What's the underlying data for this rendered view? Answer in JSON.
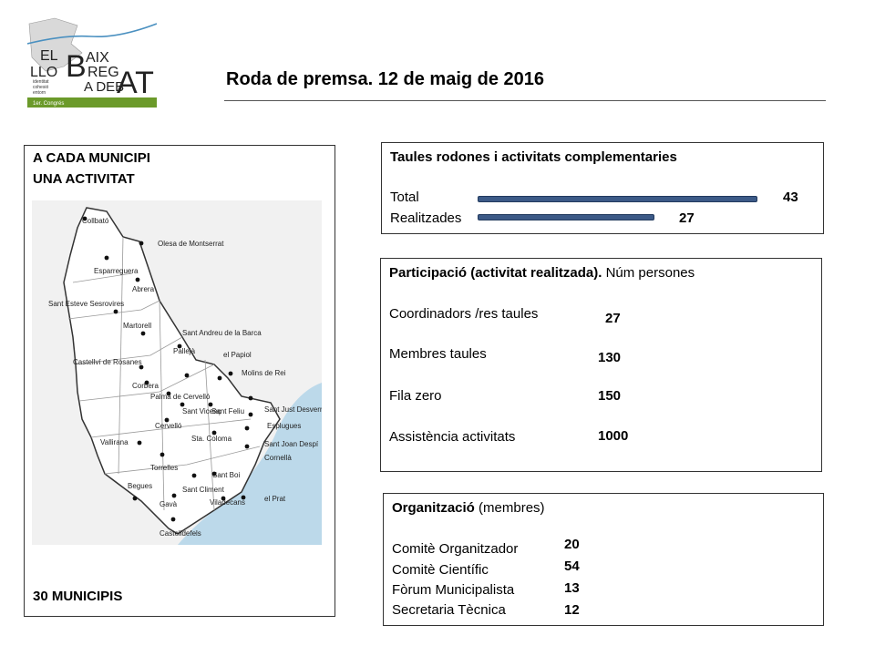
{
  "logo": {
    "line1": "EL",
    "line2": "LLO",
    "big_b": "B",
    "aix": "AIX",
    "reg": "REG",
    "at": "AT",
    "deb": "A DEB",
    "tagline": [
      "identitat",
      "cohesió",
      "entorn"
    ],
    "congress": "1er. Congrés"
  },
  "header": {
    "title": "Roda de premsa. 12 de maig de 2016"
  },
  "municipalities": {
    "heading_line1": "A CADA MUNICIPI",
    "heading_line2": "UNA ACTIVITAT",
    "footer": "30 MUNICIPIS",
    "map_labels": [
      "Collbató",
      "Olesa de Montserrat",
      "Esparreguera",
      "Abrera",
      "Sant Esteve Sesrovires",
      "Martorell",
      "Sant Andreu de la Barca",
      "el Papiol",
      "Castellví de Rosanes",
      "Pallejà",
      "Molins de Rei",
      "Corbera",
      "Palma de Cervelló",
      "Sant Vicenç",
      "Sant Feliu",
      "Sant Just Desvern",
      "Cervelló",
      "Esplugues",
      "Sant Joan Despí",
      "Vallirana",
      "Sta. Coloma",
      "Cornellà",
      "Torrelles",
      "Begues",
      "Sant Climent",
      "Sant Boi",
      "Gavà",
      "Viladecans",
      "el Prat",
      "Castelldefels"
    ]
  },
  "tables": {
    "heading": "Taules rodones i activitats complementaries",
    "rows": [
      {
        "label": "Total",
        "value": "43",
        "num": 43
      },
      {
        "label": "Realitzades",
        "value": "27",
        "num": 27
      }
    ],
    "max": 43
  },
  "participation": {
    "heading_bold": "Participació (activitat realitzada).",
    "heading_rest": " Núm persones",
    "rows": [
      {
        "label": "Coordinadors /res taules",
        "value": "27"
      },
      {
        "label": "Membres taules",
        "value": "130"
      },
      {
        "label": "Fila zero",
        "value": "150"
      },
      {
        "label": "Assistència activitats",
        "value": "1000"
      }
    ]
  },
  "organization": {
    "heading_bold": "Organització",
    "heading_rest": " (membres)",
    "rows": [
      {
        "label": "Comitè Organitzador",
        "value": "20"
      },
      {
        "label": "Comitè Científic",
        "value": "54"
      },
      {
        "label": "Fòrum Municipalista",
        "value": "13"
      },
      {
        "label": "Secretaria Tècnica",
        "value": "12"
      }
    ]
  },
  "colors": {
    "bar": "#3c5a87",
    "logo_green": "#6b9a2a",
    "map_sea": "#bcd9ea"
  }
}
